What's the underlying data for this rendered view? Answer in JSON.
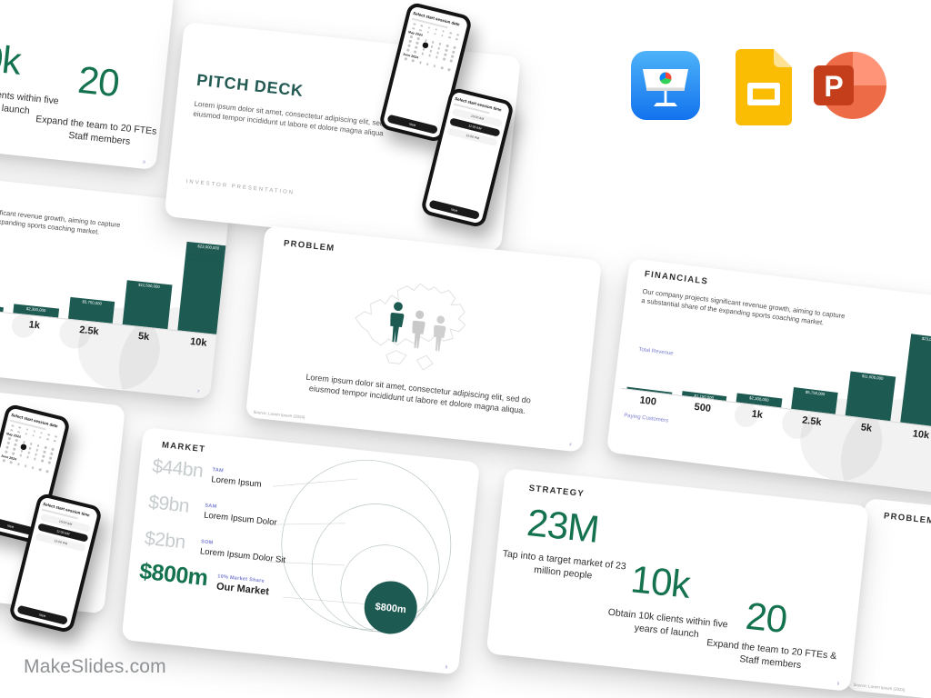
{
  "brand": {
    "watermark": "MakeSlides.com"
  },
  "app_icons": [
    {
      "name": "Keynote"
    },
    {
      "name": "Google Slides"
    },
    {
      "name": "PowerPoint",
      "glyph": "P"
    }
  ],
  "slides": {
    "cover": {
      "title": "PITCH DECK",
      "body": "Lorem ipsum dolor sit amet, consectetur adipiscing elit, sed do eiusmod tempor incididunt ut labore et dolore magna aliqua",
      "footer": "INVESTOR  PRESENTATION"
    },
    "problem": {
      "title": "PROBLEM",
      "body": "Lorem ipsum dolor sit amet, consectetur adipiscing elit, sed do eiusmod tempor incididunt ut labore et dolore magna aliqua.",
      "source": "Source: Lorem Ipsum (2024)",
      "page": "4"
    },
    "market": {
      "title": "MARKET",
      "page": "8",
      "bubble_label": "$800m",
      "rows": [
        {
          "value": "$44bn",
          "tag": "TAM",
          "name": "Lorem Ipsum"
        },
        {
          "value": "$9bn",
          "tag": "SAM",
          "name": "Lorem Ipsum Dolor"
        },
        {
          "value": "$2bn",
          "tag": "SOM",
          "name": "Lorem Ipsum Dolor Sit"
        },
        {
          "value": "$800m",
          "tag": "10% Market Share",
          "name": "Our Market"
        }
      ]
    },
    "strategy": {
      "title": "STRATEGY",
      "page": "9",
      "stats": [
        {
          "number": "23M",
          "caption": "Tap into a target market of 23 million people"
        },
        {
          "number": "10k",
          "caption": "Obtain 10k clients within five years of launch"
        },
        {
          "number": "20",
          "caption": "Expand the team to 20 FTEs & Staff members"
        }
      ]
    },
    "financials": {
      "title": "FINANCIALS",
      "page": "7",
      "body": "Our company projects significant revenue growth, aiming to capture a substantial share of the expanding sports coaching market.",
      "y_axis_label": "Total Revenue",
      "x_axis_label": "Paying Customers"
    },
    "phone_date": {
      "heading": "Select start session date",
      "month_1": "May 2024",
      "month_2": "June 2024",
      "button": "Next"
    },
    "phone_time": {
      "heading": "Select start session time",
      "slots": [
        "10:00 AM",
        "11:00 AM",
        "12:00 PM"
      ],
      "button": "Next"
    }
  },
  "chart_data": {
    "type": "bar",
    "title": "FINANCIALS",
    "categories": [
      "100",
      "500",
      "1k",
      "2.5k",
      "5k",
      "10k"
    ],
    "values": [
      230000,
      1150000,
      2300000,
      5750000,
      11500000,
      23000000
    ],
    "value_labels": [
      "",
      "$1,150,000",
      "$2,300,000",
      "$5,750,000",
      "$11,500,000",
      "$23,000,000"
    ],
    "xlabel": "Paying Customers",
    "ylabel": "Total Revenue",
    "ylim": [
      0,
      23000000
    ],
    "grid": false,
    "legend": false,
    "bar_color": "#1d5a52"
  },
  "colors": {
    "accent_teal": "#1d5a52",
    "accent_green": "#15724f",
    "label_purple": "#7b7fd0",
    "muted_gray": "#c7ccce"
  }
}
